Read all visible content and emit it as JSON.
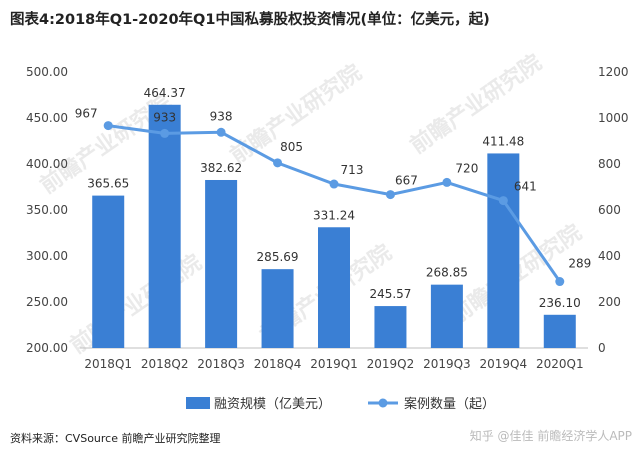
{
  "title": "图表4:2018年Q1-2020年Q1中国私募股权投资情况(单位：亿美元，起)",
  "source": "资料来源：CVSource 前瞻产业研究院整理",
  "watermark_text": "前瞻产业研究院",
  "watermark_right": "知乎 @佳佳 前瞻经济学人APP",
  "colors": {
    "bar": "#3A7FD4",
    "line": "#5B9BE3",
    "axis_text": "#444444"
  },
  "chart_data": {
    "type": "bar+line",
    "categories": [
      "2018Q1",
      "2018Q2",
      "2018Q3",
      "2018Q4",
      "2019Q1",
      "2019Q2",
      "2019Q3",
      "2019Q4",
      "2020Q1"
    ],
    "series": [
      {
        "name": "融资规模（亿美元）",
        "type": "bar",
        "axis": "left",
        "values": [
          365.65,
          464.37,
          382.62,
          285.69,
          331.24,
          245.57,
          268.85,
          411.48,
          236.1
        ],
        "labels": [
          "365.65",
          "464.37",
          "382.62",
          "285.69",
          "331.24",
          "245.57",
          "268.85",
          "411.48",
          "236.10"
        ]
      },
      {
        "name": "案例数量（起）",
        "type": "line",
        "axis": "right",
        "values": [
          967,
          933,
          938,
          805,
          713,
          667,
          720,
          641,
          289
        ],
        "labels": [
          "967",
          "933",
          "938",
          "805",
          "713",
          "667",
          "720",
          "641",
          "289"
        ]
      }
    ],
    "left_axis": {
      "ylim": [
        200,
        500
      ],
      "ticks": [
        "200.00",
        "250.00",
        "300.00",
        "350.00",
        "400.00",
        "450.00",
        "500.00"
      ]
    },
    "right_axis": {
      "ylim": [
        0,
        1200
      ],
      "ticks": [
        "0",
        "200",
        "400",
        "600",
        "800",
        "1000",
        "1200"
      ]
    },
    "grid": false,
    "legend_position": "bottom"
  }
}
